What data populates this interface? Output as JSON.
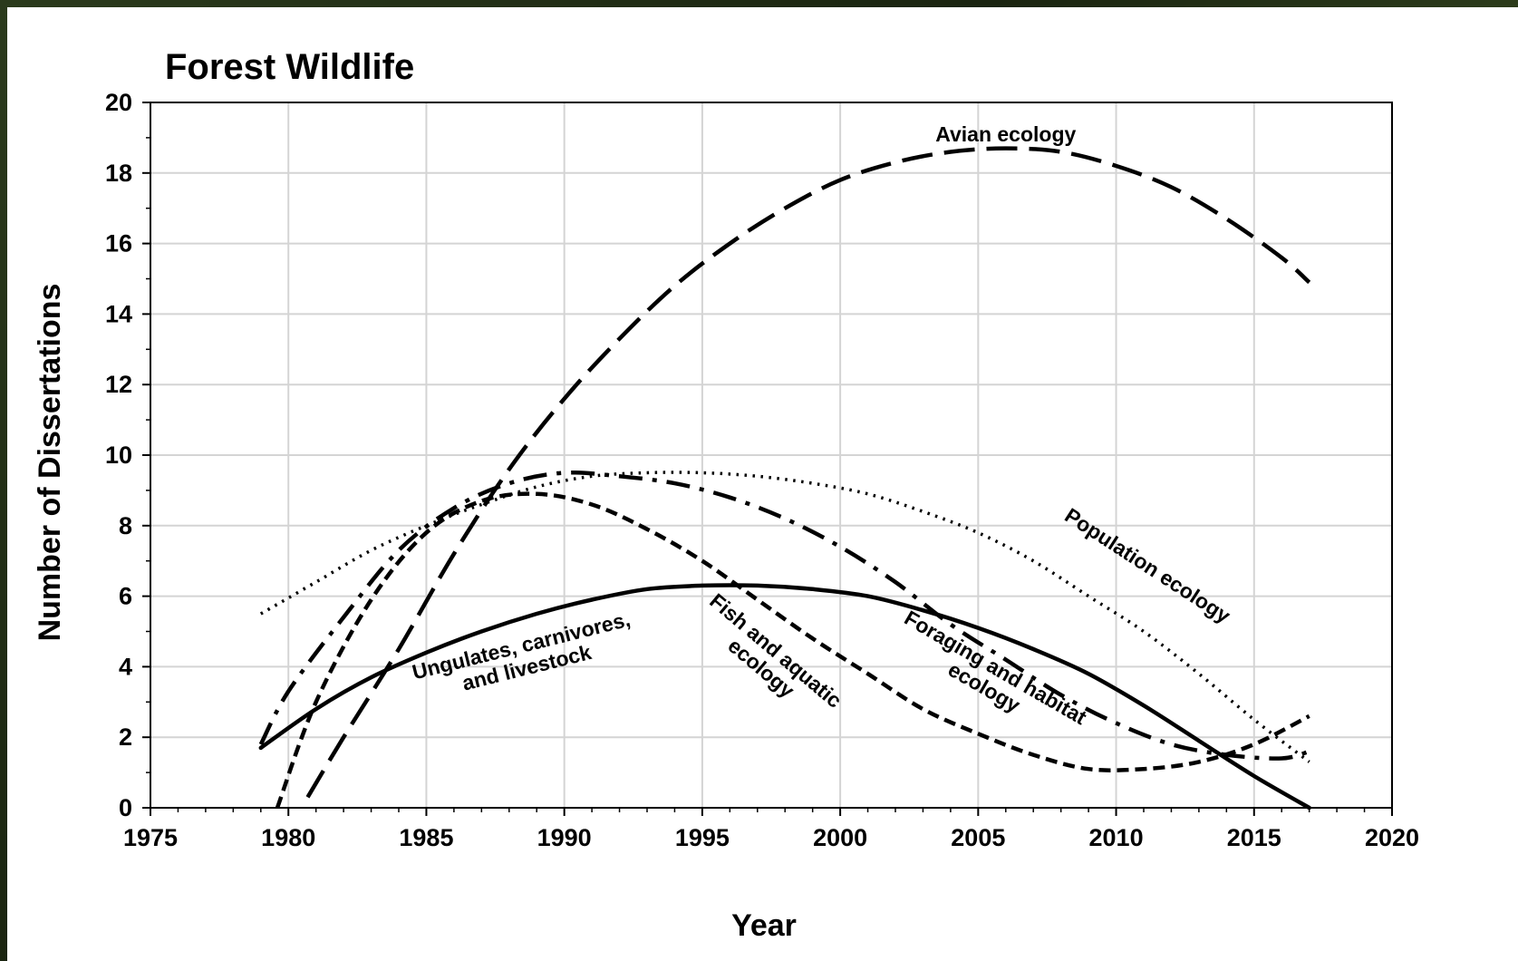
{
  "chart_data": {
    "type": "line",
    "title": "Forest Wildlife",
    "xlabel": "Year",
    "ylabel": "Number of Dissertations",
    "xlim": [
      1975,
      2020
    ],
    "ylim": [
      0,
      20
    ],
    "xticks": [
      1975,
      1980,
      1985,
      1990,
      1995,
      2000,
      2005,
      2010,
      2015,
      2020
    ],
    "yticks": [
      0,
      2,
      4,
      6,
      8,
      10,
      12,
      14,
      16,
      18,
      20
    ],
    "grid": true,
    "legend": "none",
    "series": [
      {
        "name": "Avian ecology",
        "style": "long-dash",
        "x": [
          1980.7,
          1982,
          1984,
          1986,
          1988,
          1990,
          1992,
          1994,
          1996,
          1998,
          2000,
          2002,
          2004,
          2006,
          2008,
          2010,
          2012,
          2014,
          2016,
          2017
        ],
        "y": [
          0.3,
          2.0,
          4.5,
          7.2,
          9.6,
          11.6,
          13.3,
          14.8,
          16.0,
          17.0,
          17.8,
          18.3,
          18.6,
          18.7,
          18.6,
          18.2,
          17.6,
          16.7,
          15.6,
          14.9
        ]
      },
      {
        "name": "Population ecology",
        "style": "dotted",
        "x": [
          1979,
          1981,
          1983,
          1985,
          1987,
          1989,
          1991,
          1993,
          1995,
          1997,
          1999,
          2001,
          2003,
          2005,
          2007,
          2009,
          2011,
          2013,
          2015,
          2017
        ],
        "y": [
          5.5,
          6.4,
          7.3,
          8.0,
          8.6,
          9.1,
          9.4,
          9.5,
          9.5,
          9.4,
          9.2,
          8.9,
          8.4,
          7.8,
          7.0,
          6.0,
          5.0,
          3.8,
          2.5,
          1.3
        ]
      },
      {
        "name": "Foraging and habitat ecology",
        "style": "dash-dot",
        "x": [
          1979,
          1980,
          1982,
          1984,
          1986,
          1988,
          1990,
          1992,
          1994,
          1996,
          1998,
          2000,
          2002,
          2004,
          2006,
          2008,
          2010,
          2012,
          2014,
          2016,
          2017
        ],
        "y": [
          1.8,
          3.3,
          5.4,
          7.3,
          8.5,
          9.2,
          9.5,
          9.4,
          9.2,
          8.8,
          8.2,
          7.4,
          6.4,
          5.2,
          4.2,
          3.2,
          2.4,
          1.8,
          1.5,
          1.4,
          1.6
        ]
      },
      {
        "name": "Fish and aquatic ecology",
        "style": "short-dash",
        "x": [
          1979.6,
          1981,
          1983,
          1985,
          1987,
          1989,
          1991,
          1993,
          1995,
          1997,
          1999,
          2001,
          2003,
          2005,
          2007,
          2009,
          2011,
          2013,
          2015,
          2017
        ],
        "y": [
          0.0,
          3.0,
          5.9,
          7.8,
          8.7,
          8.9,
          8.6,
          7.9,
          7.0,
          5.9,
          4.8,
          3.8,
          2.8,
          2.1,
          1.5,
          1.1,
          1.1,
          1.3,
          1.8,
          2.6
        ]
      },
      {
        "name": "Ungulates, carnivores, and livestock",
        "style": "solid",
        "x": [
          1979,
          1981,
          1983,
          1985,
          1987,
          1989,
          1991,
          1993,
          1995,
          1997,
          1999,
          2001,
          2003,
          2005,
          2007,
          2009,
          2011,
          2013,
          2015,
          2017
        ],
        "y": [
          1.7,
          2.8,
          3.7,
          4.4,
          5.0,
          5.5,
          5.9,
          6.2,
          6.3,
          6.3,
          6.2,
          6.0,
          5.6,
          5.1,
          4.5,
          3.8,
          2.9,
          1.9,
          0.9,
          0.0
        ]
      }
    ],
    "annotations": [
      {
        "lines": [
          "Avian ecology"
        ],
        "x": 2006,
        "y": 18.9,
        "rotate": 0
      },
      {
        "lines": [
          "Population ecology"
        ],
        "x": 2011,
        "y": 6.7,
        "rotate": 33
      },
      {
        "lines": [
          "Foraging and habitat",
          "ecology"
        ],
        "x": 2005.5,
        "y": 3.8,
        "rotate": 30
      },
      {
        "lines": [
          "Fish and aquatic",
          "ecology"
        ],
        "x": 1997.5,
        "y": 4.3,
        "rotate": 40
      },
      {
        "lines": [
          "Ungulates, carnivores,",
          "and livestock"
        ],
        "x": 1988.5,
        "y": 4.4,
        "rotate": -14
      }
    ]
  }
}
